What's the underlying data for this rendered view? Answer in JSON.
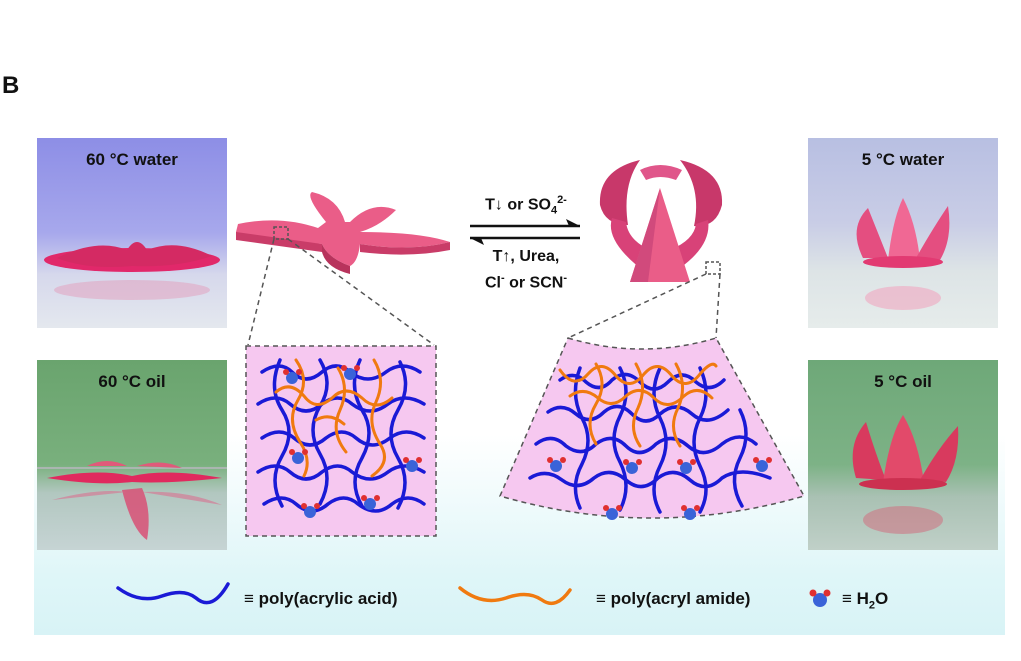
{
  "figure": {
    "panel_letter": "B"
  },
  "photos": {
    "top_left": "60 °C water",
    "bottom_left": "60 °C oil",
    "top_right": "5 °C water",
    "bottom_right": "5 °C oil"
  },
  "arrows": {
    "forward_prefix": "T↓ or SO",
    "forward_sub": "4",
    "forward_sup": "2-",
    "reverse_line1": "T↑, Urea,",
    "reverse_line2_a": "Cl",
    "reverse_line2_sup1": "-",
    "reverse_line2_b": " or SCN",
    "reverse_line2_sup2": "-"
  },
  "legend": {
    "paa": "≡ poly(acrylic acid)",
    "pam": "≡ poly(acryl amide)",
    "water_prefix": "≡ H",
    "water_sub": "2",
    "water_suffix": "O"
  },
  "colors": {
    "paa_chain": "#1a1ad6",
    "pam_chain": "#f07a10",
    "gel_fill": "#f6c8f0",
    "flower": "#e0507e",
    "bottom_band": "#dff6f8",
    "water_oxygen": "#3a63d8",
    "water_hydrogen": "#e03030"
  }
}
